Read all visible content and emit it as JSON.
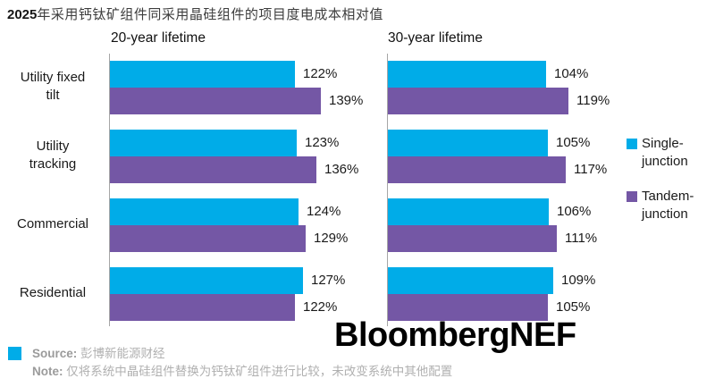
{
  "title": {
    "year_bold": "2025",
    "rest": "年采用钙钛矿组件同采用晶硅组件的项目度电成本相对值"
  },
  "colors": {
    "single_junction": "#00ACE8",
    "tandem_junction": "#7457A5",
    "axis": "#a6a6a6",
    "footer_label": "#9b9b9b",
    "footer_text": "#b0b0b0"
  },
  "legend": {
    "items": [
      {
        "line1": "Single-",
        "line2": "junction",
        "series_key": "single_junction"
      },
      {
        "line1": "Tandem-",
        "line2": "junction",
        "series_key": "tandem_junction"
      }
    ]
  },
  "logo": {
    "text": "BloombergNEF"
  },
  "footer": {
    "source_label": "Source:",
    "source_text": "彭博新能源财经",
    "note_label": "Note:",
    "note_text": "仅将系统中晶硅组件替换为钙钛矿组件进行比较，未改变系统中其他配置"
  },
  "chart_data": {
    "type": "bar",
    "orientation": "horizontal",
    "title": "2025年采用钙钛矿组件同采用晶硅组件的项目度电成本相对值",
    "categories": [
      "Utility fixed tilt",
      "Utility tracking",
      "Commercial",
      "Residential"
    ],
    "category_display": [
      [
        "Utility fixed",
        "tilt"
      ],
      [
        "Utility",
        "tracking"
      ],
      [
        "Commercial"
      ],
      [
        "Residential"
      ]
    ],
    "unit": "%",
    "xlim": [
      0,
      145
    ],
    "grid": false,
    "legend_position": "right",
    "panels": [
      {
        "title": "20-year lifetime",
        "series": [
          {
            "name": "Single-junction",
            "values": [
              122,
              123,
              124,
              127
            ]
          },
          {
            "name": "Tandem-junction",
            "values": [
              139,
              136,
              129,
              122
            ]
          }
        ]
      },
      {
        "title": "30-year lifetime",
        "series": [
          {
            "name": "Single-junction",
            "values": [
              104,
              105,
              106,
              109
            ]
          },
          {
            "name": "Tandem-junction",
            "values": [
              119,
              117,
              111,
              105
            ]
          }
        ]
      }
    ]
  }
}
